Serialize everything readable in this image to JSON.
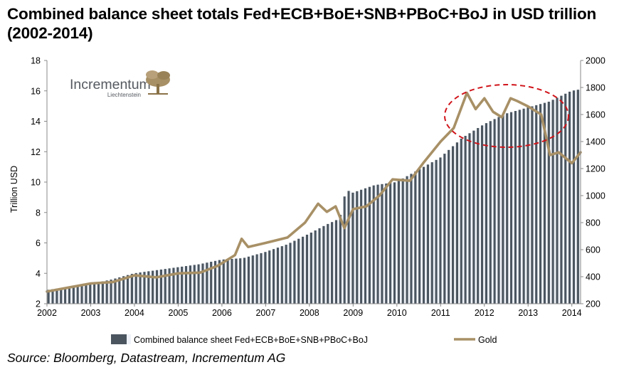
{
  "title": "Combined balance sheet totals Fed+ECB+BoE+SNB+PBoC+BoJ in USD trillion (2002-2014)",
  "source": "Source: Bloomberg, Datastream, Incrementum AG",
  "logo": {
    "name": "Incrementum",
    "sub": "Liechtenstein"
  },
  "colors": {
    "bars": "#4a5560",
    "bar_highlight": "#eef2f8",
    "gold_line": "#a89066",
    "ellipse": "#d0141a"
  },
  "chart_data": {
    "type": "bar",
    "x_range": [
      2002.0,
      2014.2
    ],
    "xticks": [
      "2002",
      "2003",
      "2004",
      "2005",
      "2006",
      "2007",
      "2008",
      "2009",
      "2010",
      "2011",
      "2012",
      "2013",
      "2014"
    ],
    "y_left": {
      "label": "Trillion USD",
      "lim": [
        2,
        18
      ],
      "ticks": [
        "2",
        "4",
        "6",
        "8",
        "10",
        "12",
        "14",
        "16",
        "18"
      ]
    },
    "y_right": {
      "lim": [
        200,
        2000
      ],
      "ticks": [
        "200",
        "400",
        "600",
        "800",
        "1000",
        "1200",
        "1400",
        "1600",
        "1800",
        "2000"
      ]
    },
    "series": [
      {
        "name": "Combined balance sheet Fed+ECB+BoE+SNB+PBoC+BoJ",
        "type": "bar",
        "axis": "left",
        "x": [
          2002.0,
          2002.5,
          2003.0,
          2003.5,
          2004.0,
          2004.5,
          2005.0,
          2005.5,
          2006.0,
          2006.5,
          2007.0,
          2007.5,
          2008.0,
          2008.4,
          2008.7,
          2008.85,
          2009.0,
          2009.5,
          2010.0,
          2010.5,
          2011.0,
          2011.5,
          2012.0,
          2012.5,
          2013.0,
          2013.5,
          2014.0,
          2014.2
        ],
        "values": [
          2.9,
          3.1,
          3.3,
          3.6,
          4.0,
          4.2,
          4.4,
          4.6,
          4.9,
          5.0,
          5.4,
          5.9,
          6.6,
          7.2,
          7.6,
          9.5,
          9.3,
          9.8,
          10.0,
          10.8,
          11.6,
          12.9,
          13.8,
          14.5,
          14.9,
          15.3,
          16.0,
          16.1
        ]
      },
      {
        "name": "Gold",
        "type": "line",
        "axis": "right",
        "x": [
          2002.0,
          2002.5,
          2003.0,
          2003.5,
          2004.0,
          2004.5,
          2005.0,
          2005.5,
          2005.9,
          2006.3,
          2006.45,
          2006.6,
          2007.0,
          2007.5,
          2007.9,
          2008.2,
          2008.4,
          2008.6,
          2008.8,
          2009.0,
          2009.3,
          2009.6,
          2009.9,
          2010.3,
          2010.6,
          2011.0,
          2011.3,
          2011.6,
          2011.8,
          2012.0,
          2012.2,
          2012.4,
          2012.6,
          2012.75,
          2013.0,
          2013.3,
          2013.5,
          2013.7,
          2014.0,
          2014.2
        ],
        "values": [
          290,
          320,
          350,
          360,
          410,
          395,
          425,
          430,
          480,
          560,
          680,
          620,
          650,
          690,
          800,
          940,
          880,
          920,
          760,
          900,
          920,
          1000,
          1120,
          1110,
          1240,
          1400,
          1500,
          1760,
          1640,
          1720,
          1620,
          1580,
          1720,
          1700,
          1660,
          1600,
          1300,
          1320,
          1240,
          1320
        ]
      }
    ],
    "legend": {
      "placement": "bottom",
      "entries": [
        "Combined balance sheet Fed+ECB+BoE+SNB+PBoC+BoJ",
        "Gold"
      ]
    },
    "annotations": [
      {
        "type": "ellipse",
        "style": "dashed red",
        "around": "Gold peak 2011-2013"
      }
    ]
  }
}
